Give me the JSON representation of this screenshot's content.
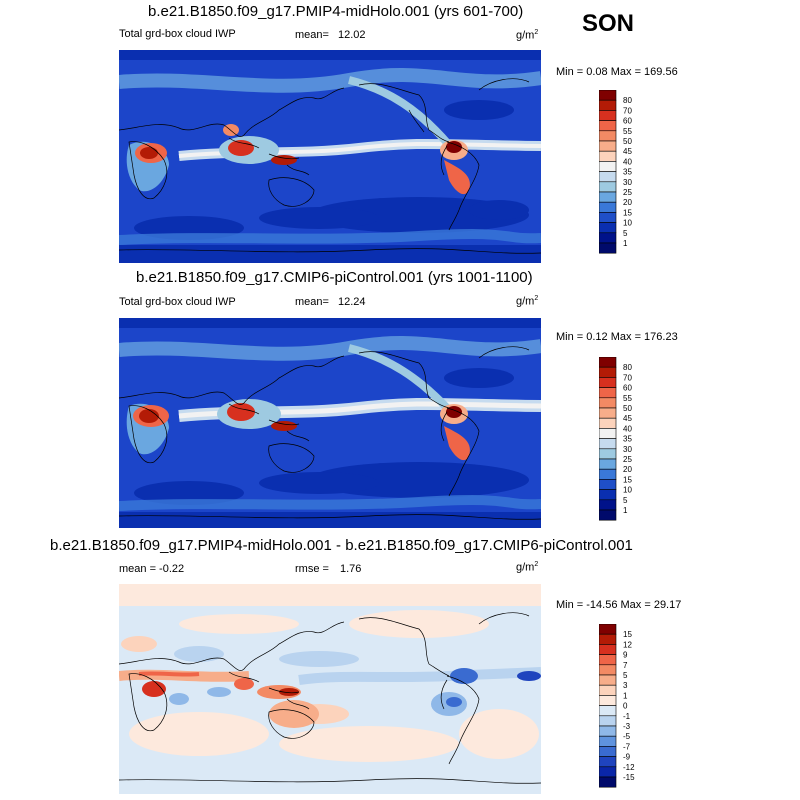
{
  "season": "SON",
  "panels": [
    {
      "title": "b.e21.B1850.f09_g17.PMIP4-midHolo.001 (yrs 601-700)",
      "left_label": "Total grd-box cloud IWP",
      "mean_label": "mean=",
      "mean_value": "12.02",
      "unit": "g/m",
      "unit_sup": "2",
      "minmax": "Min =  0.08 Max = 169.56",
      "type": "absolute"
    },
    {
      "title": "b.e21.B1850.f09_g17.CMIP6-piControl.001 (yrs 1001-1100)",
      "left_label": "Total grd-box cloud IWP",
      "mean_label": "mean=",
      "mean_value": "12.24",
      "unit": "g/m",
      "unit_sup": "2",
      "minmax": "Min =  0.12 Max = 176.23",
      "type": "absolute"
    },
    {
      "title": "b.e21.B1850.f09_g17.PMIP4-midHolo.001 - b.e21.B1850.f09_g17.CMIP6-piControl.001",
      "left_label": "mean =  -0.22",
      "rmse_label": "rmse =",
      "rmse_value": "1.76",
      "unit": "g/m",
      "unit_sup": "2",
      "minmax": "Min = -14.56 Max =  29.17",
      "type": "difference"
    }
  ],
  "colorbars": {
    "absolute": {
      "labels": [
        "80",
        "70",
        "60",
        "55",
        "50",
        "45",
        "40",
        "35",
        "30",
        "25",
        "20",
        "15",
        "10",
        "5",
        "1"
      ],
      "colors": [
        "#7f0000",
        "#b31b06",
        "#d7301f",
        "#ef6548",
        "#f38a64",
        "#f7ad8a",
        "#fcd3bc",
        "#f2f2f2",
        "#c6dbef",
        "#9ecae1",
        "#6aa7e0",
        "#3a78d8",
        "#1f4fc8",
        "#0a2fb0",
        "#00128a",
        "#000a6b"
      ]
    },
    "difference": {
      "labels": [
        "15",
        "12",
        "9",
        "7",
        "5",
        "3",
        "1",
        "0",
        "-1",
        "-3",
        "-5",
        "-7",
        "-9",
        "-12",
        "-15"
      ],
      "colors": [
        "#7f0000",
        "#b31b06",
        "#d7301f",
        "#ef6548",
        "#f38a64",
        "#f7ad8a",
        "#fcd3bc",
        "#fde9dd",
        "#dbe9f6",
        "#b9d3ef",
        "#8fb8e8",
        "#5f93de",
        "#3a6bd0",
        "#1f44be",
        "#0a26a8",
        "#000a6b"
      ]
    }
  }
}
